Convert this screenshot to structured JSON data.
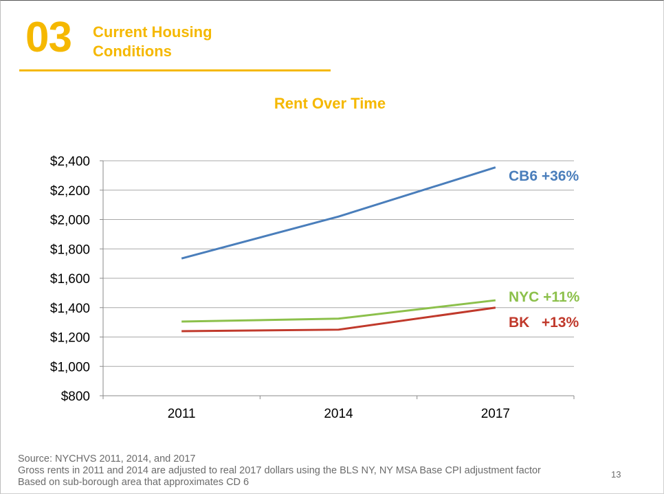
{
  "header": {
    "section_number": "03",
    "section_title_line1": "Current Housing",
    "section_title_line2": "Conditions"
  },
  "chart_data": {
    "type": "line",
    "title": "Rent Over Time",
    "categories": [
      "2011",
      "2014",
      "2017"
    ],
    "y_ticks": [
      "$800",
      "$1,000",
      "$1,200",
      "$1,400",
      "$1,600",
      "$1,800",
      "$2,000",
      "$2,200",
      "$2,400"
    ],
    "ylim": [
      800,
      2400
    ],
    "grid": true,
    "series": [
      {
        "name": "CB6",
        "label": "CB6 +36%",
        "values": [
          1735,
          2020,
          2355
        ],
        "color": "#4a7ebb"
      },
      {
        "name": "NYC",
        "label": "NYC +11%",
        "values": [
          1305,
          1325,
          1450
        ],
        "color": "#8cc04b"
      },
      {
        "name": "BK",
        "label": "BK   +13%",
        "values": [
          1240,
          1250,
          1400
        ],
        "color": "#c0392b"
      }
    ]
  },
  "footer": {
    "line1": "Source: NYCHVS 2011, 2014, and 2017",
    "line2": "Gross rents in 2011 and 2014 are adjusted to real 2017 dollars using the BLS NY, NY MSA Base CPI adjustment factor",
    "line3": "Based on sub-borough area that approximates CD 6"
  },
  "page_number": "13"
}
